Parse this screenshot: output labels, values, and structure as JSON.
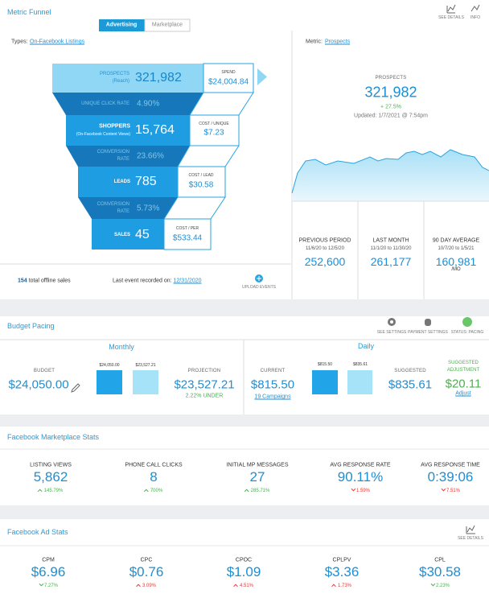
{
  "funnel": {
    "title": "Metric Funnel",
    "tabs": [
      "Advertising",
      "Marketplace"
    ],
    "header_icons": [
      "SEE DETAILS",
      "INFO"
    ],
    "types_label": "Types:",
    "types_value": "On-Facebook Listings",
    "stages": [
      {
        "label": "PROSPECTS",
        "sublabel": "(Reach)",
        "value": "321,982",
        "cost_label": "SPEND",
        "cost": "$24,004.84"
      },
      {
        "label": "SHOPPERS",
        "sublabel": "(On-Facebook Content Views)",
        "value": "15,764",
        "cost_label": "COST / UNIQUE",
        "cost": "$7.23"
      },
      {
        "label": "LEADS",
        "value": "785",
        "cost_label": "COST / LEAD",
        "cost": "$30.58"
      },
      {
        "label": "SALES",
        "value": "45",
        "cost_label": "COST / PER",
        "cost": "$533.44"
      }
    ],
    "rates": [
      {
        "label": "UNIQUE CLICK RATE",
        "value": "4.90%"
      },
      {
        "label": "CONVERSION RATE",
        "value": "23.66%"
      },
      {
        "label": "CONVERSION RATE",
        "value": "5.73%"
      }
    ],
    "offline_count": "154",
    "offline_label": "total offline sales",
    "last_event_label": "Last event recorded on:",
    "last_event_date": "12/31/2020",
    "upload_label": "UPLOAD EVENTS"
  },
  "metric": {
    "label": "Metric:",
    "value": "Prospects",
    "name": "PROSPECTS",
    "total": "321,982",
    "change": "+ 27.5%",
    "updated": "Updated: 1/7/2021 @ 7:54pm",
    "periods": [
      {
        "title": "PREVIOUS PERIOD",
        "range": "11/6/20 to 12/5/20",
        "value": "252,600"
      },
      {
        "title": "LAST MONTH",
        "range": "11/1/20 to 11/30/20",
        "value": "261,177"
      },
      {
        "title": "90 DAY AVERAGE",
        "range": "10/7/20 to 1/5/21",
        "value": "160,981",
        "unit": "/MO"
      }
    ]
  },
  "budget": {
    "title": "Budget Pacing",
    "icons": [
      "SEE SETTINGS",
      "PAYMENT SETTINGS",
      "STATUS: PACING"
    ],
    "monthly": {
      "title": "Monthly",
      "budget_label": "BUDGET",
      "budget": "$24,050.00",
      "bar_labels": [
        "$24,050.00",
        "$23,527.21"
      ],
      "projection_label": "PROJECTION",
      "projection": "$23,527.21",
      "projection_note": "2.22% UNDER"
    },
    "daily": {
      "title": "Daily",
      "current_label": "CURRENT",
      "current": "$815.50",
      "campaigns": "19 Campaigns",
      "bar_labels": [
        "$815.50",
        "$835.61"
      ],
      "suggested_label": "SUGGESTED",
      "suggested": "$835.61",
      "adjustment_label": "SUGGESTED ADJUSTMENT",
      "adjustment": "$20.11",
      "adjust_link": "Adjust"
    }
  },
  "marketplace": {
    "title": "Facebook Marketplace Stats",
    "stats": [
      {
        "label": "LISTING VIEWS",
        "value": "5,862",
        "change": "145.79%",
        "direction": "up",
        "color": "#4caf50"
      },
      {
        "label": "PHONE CALL CLICKS",
        "value": "8",
        "change": "700%",
        "direction": "up",
        "color": "#4caf50"
      },
      {
        "label": "INITIAL MP MESSAGES",
        "value": "27",
        "change": "285.71%",
        "direction": "up",
        "color": "#4caf50"
      },
      {
        "label": "AVG RESPONSE RATE",
        "value": "90.11%",
        "change": "1.59%",
        "direction": "down",
        "color": "#e53935"
      },
      {
        "label": "AVG RESPONSE TIME",
        "value": "0:39:06",
        "change": "7.51%",
        "direction": "down",
        "color": "#e53935"
      }
    ]
  },
  "ads": {
    "title": "Facebook Ad Stats",
    "details": "SEE DETAILS",
    "stats": [
      {
        "label": "CPM",
        "value": "$6.96",
        "change": "7.27%",
        "direction": "down",
        "color": "#4caf50"
      },
      {
        "label": "CPC",
        "value": "$0.76",
        "change": "3.09%",
        "direction": "up",
        "color": "#e53935"
      },
      {
        "label": "CPOC",
        "value": "$1.09",
        "change": "4.51%",
        "direction": "up",
        "color": "#e53935"
      },
      {
        "label": "CPLPV",
        "value": "$3.36",
        "change": "1.73%",
        "direction": "up",
        "color": "#e53935"
      },
      {
        "label": "CPL",
        "value": "$30.58",
        "change": "2.23%",
        "direction": "down",
        "color": "#4caf50"
      }
    ]
  }
}
